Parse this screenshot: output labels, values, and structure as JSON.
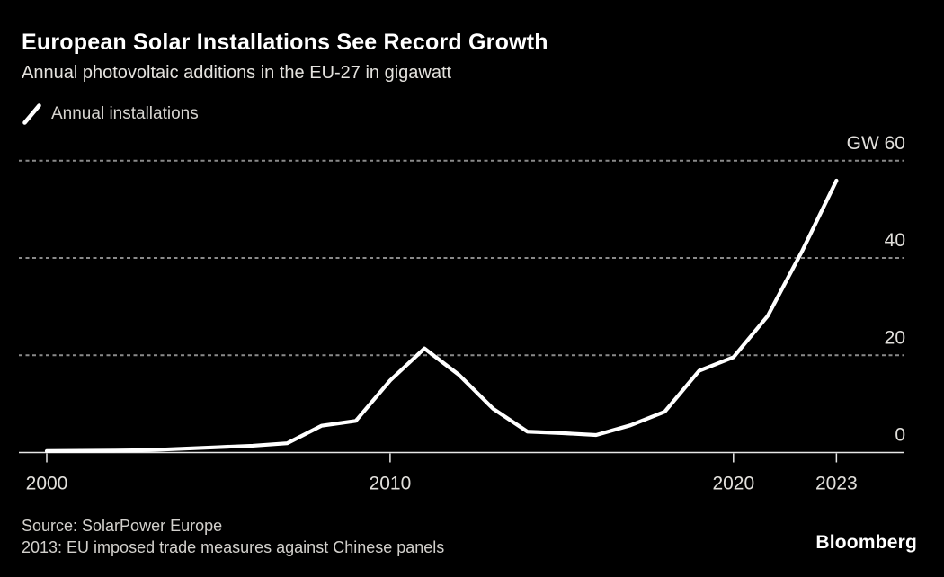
{
  "page": {
    "title": "European Solar Installations See Record Growth",
    "subtitle": "Annual photovoltaic additions in the EU-27 in gigawatt",
    "source_line": "Source: SolarPower Europe",
    "note_line": "2013: EU imposed trade measures against Chinese panels",
    "brand": "Bloomberg"
  },
  "legend": {
    "items": [
      {
        "label": "Annual installations",
        "marker": "diagonal-line"
      }
    ]
  },
  "colors": {
    "background": "#000000",
    "title_text": "#ffffff",
    "subtitle_text": "#e4e2de",
    "legend_text": "#d6d4d0",
    "gridline": "#8a8a8a",
    "axis_line": "#e8e8e8",
    "tick_text": "#e2e0dc",
    "series_line": "#ffffff",
    "footer_text": "#d2d0cc",
    "brand_text": "#ffffff"
  },
  "chart_data": {
    "type": "line",
    "title": "European Solar Installations See Record Growth",
    "subtitle": "Annual photovoltaic additions in the EU-27 in gigawatt",
    "xlabel": "",
    "ylabel": "GW",
    "y_unit_label": "GW",
    "grid": "horizontal-dotted",
    "legend_position": "top-left",
    "xlim": [
      2000,
      2023
    ],
    "ylim": [
      0,
      62
    ],
    "x_ticks": [
      2000,
      2010,
      2020,
      2023
    ],
    "y_ticks": [
      0,
      20,
      40,
      60
    ],
    "series": [
      {
        "name": "Annual installations",
        "color": "#ffffff",
        "x": [
          2000,
          2001,
          2002,
          2003,
          2004,
          2005,
          2006,
          2007,
          2008,
          2009,
          2010,
          2011,
          2012,
          2013,
          2014,
          2015,
          2016,
          2017,
          2018,
          2019,
          2020,
          2021,
          2022,
          2023
        ],
        "values": [
          0.3,
          0.35,
          0.4,
          0.5,
          0.8,
          1.1,
          1.4,
          1.9,
          5.5,
          6.5,
          14.8,
          21.4,
          16.0,
          9.0,
          4.3,
          4.0,
          3.6,
          5.6,
          8.4,
          16.8,
          19.6,
          28.1,
          41.4,
          55.9
        ]
      }
    ]
  }
}
